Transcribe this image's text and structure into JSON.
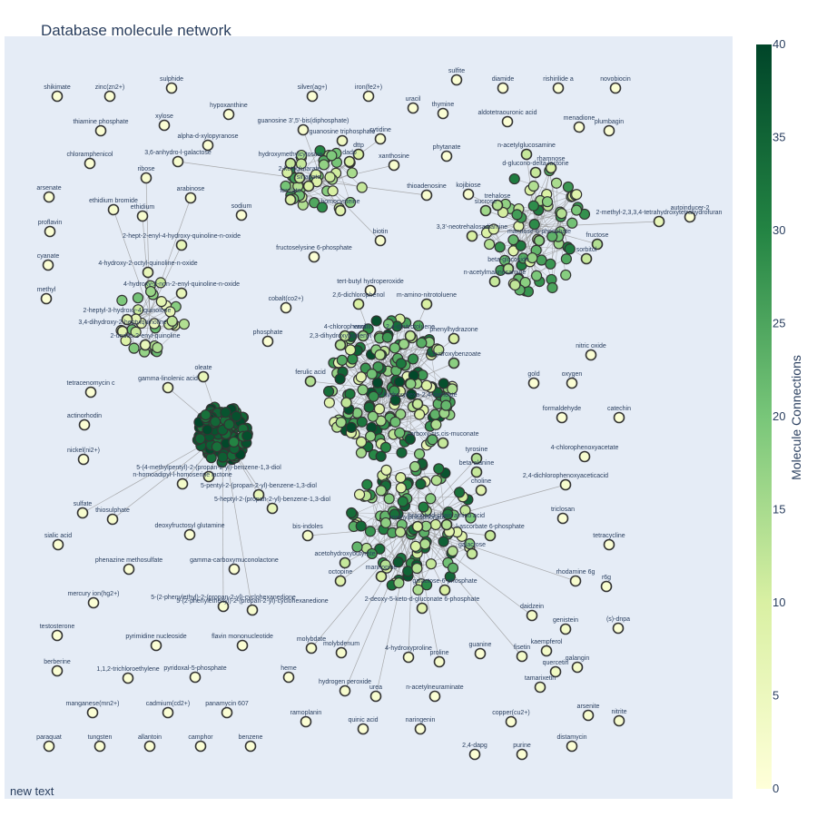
{
  "title": "Database molecule network",
  "footnote": "new text",
  "colorbar": {
    "title": "Molecule Connections",
    "min": 0,
    "max": 40,
    "ticks": [
      0,
      5,
      10,
      15,
      20,
      25,
      30,
      35,
      40
    ],
    "colors": [
      "#ffffd9",
      "#d9f0a3",
      "#78c679",
      "#238443",
      "#004529"
    ]
  },
  "colors": {
    "plot_bg": "#e5ecf6",
    "edge": "#999999",
    "node_stroke": "#333333",
    "text": "#2a3f5f"
  },
  "labeled_nodes": [
    {
      "label": "shikimate",
      "value": 1
    },
    {
      "label": "zinc(zn2+)",
      "value": 1
    },
    {
      "label": "sulphide",
      "value": 1
    },
    {
      "label": "silver(ag+)",
      "value": 1
    },
    {
      "label": "iron(fe2+)",
      "value": 1
    },
    {
      "label": "sulfite",
      "value": 1
    },
    {
      "label": "diamide",
      "value": 1
    },
    {
      "label": "rishirilide a",
      "value": 1
    },
    {
      "label": "novobiocin",
      "value": 1
    },
    {
      "label": "hypoxanthine",
      "value": 1
    },
    {
      "label": "uracil",
      "value": 1
    },
    {
      "label": "thymine",
      "value": 1
    },
    {
      "label": "thiamine phosphate",
      "value": 1
    },
    {
      "label": "xylose",
      "value": 1
    },
    {
      "label": "guanosine 3',5'-bis(diphosphate)",
      "value": 2
    },
    {
      "label": "aldotetraouronic acid",
      "value": 1
    },
    {
      "label": "menadione",
      "value": 1
    },
    {
      "label": "plumbagin",
      "value": 1
    },
    {
      "label": "alpha-d-xylopyranose",
      "value": 1
    },
    {
      "label": "guanosine triphosphate",
      "value": 4
    },
    {
      "label": "cytidine",
      "value": 2
    },
    {
      "label": "chloramphenicol",
      "value": 1
    },
    {
      "label": "3,6-anhydro-l-galactose",
      "value": 2
    },
    {
      "label": "ribose",
      "value": 2
    },
    {
      "label": "xanthosine",
      "value": 2
    },
    {
      "label": "phytanate",
      "value": 1
    },
    {
      "label": "arsenate",
      "value": 1
    },
    {
      "label": "arabinose",
      "value": 2
    },
    {
      "label": "thioadenosine",
      "value": 2
    },
    {
      "label": "kojibiose",
      "value": 2
    },
    {
      "label": "ethidium bromide",
      "value": 2
    },
    {
      "label": "ethidium",
      "value": 2
    },
    {
      "label": "sodium",
      "value": 1
    },
    {
      "label": "autoinducer-2",
      "value": 1
    },
    {
      "label": "proflavin",
      "value": 1
    },
    {
      "label": "biotin",
      "value": 2
    },
    {
      "label": "fructoselysine 6-phosphate",
      "value": 1
    },
    {
      "label": "cyanate",
      "value": 1
    },
    {
      "label": "methyl",
      "value": 1
    },
    {
      "label": "tert-butyl hydroperoxide",
      "value": 1
    },
    {
      "label": "cobalt(co2+)",
      "value": 1
    },
    {
      "label": "phosphate",
      "value": 1
    },
    {
      "label": "nitric oxide",
      "value": 1
    },
    {
      "label": "oleate",
      "value": 6
    },
    {
      "label": "gamma-linolenic acid",
      "value": 4
    },
    {
      "label": "tetracenomycin c",
      "value": 1
    },
    {
      "label": "gold",
      "value": 1
    },
    {
      "label": "oxygen",
      "value": 1
    },
    {
      "label": "actinorhodin",
      "value": 1
    },
    {
      "label": "formaldehyde",
      "value": 1
    },
    {
      "label": "catechin",
      "value": 1
    },
    {
      "label": "nickel(ni2+)",
      "value": 1
    },
    {
      "label": "4-chlorophenoxyacetate",
      "value": 2
    },
    {
      "label": "2,4-dichlorophenoxyaceticacid",
      "value": 2
    },
    {
      "label": "n-homoadipyl-l-homoserine lactone",
      "value": 3
    },
    {
      "label": "triclosan",
      "value": 1
    },
    {
      "label": "sulfate",
      "value": 2
    },
    {
      "label": "thiosulphate",
      "value": 2
    },
    {
      "label": "sialic acid",
      "value": 1
    },
    {
      "label": "deoxyfructosyl glutamine",
      "value": 1
    },
    {
      "label": "bis-indoles",
      "value": 3
    },
    {
      "label": "tetracycline",
      "value": 1
    },
    {
      "label": "phenazine methosulfate",
      "value": 1
    },
    {
      "label": "gamma-carboxymuconolactone",
      "value": 1
    },
    {
      "label": "rhodamine 6g",
      "value": 2
    },
    {
      "label": "r6g",
      "value": 2
    },
    {
      "label": "mercury ion(hg2+)",
      "value": 1
    },
    {
      "label": "5-(2-phenylethyl)-2-(propan-2-yl)-cyclohexanedione",
      "value": 2
    },
    {
      "label": "5-(2-phenylethenyl)-2-(propan-2-yl)-cyclohexanedione",
      "value": 2
    },
    {
      "label": "(s)-dnpa",
      "value": 1
    },
    {
      "label": "daidzein",
      "value": 3
    },
    {
      "label": "genistein",
      "value": 3
    },
    {
      "label": "testosterone",
      "value": 1
    },
    {
      "label": "pyrimidine nucleoside",
      "value": 1
    },
    {
      "label": "flavin mononucleotide",
      "value": 1
    },
    {
      "label": "molybdate",
      "value": 2
    },
    {
      "label": "molybdenum",
      "value": 2
    },
    {
      "label": "4-hydroxyproline",
      "value": 2
    },
    {
      "label": "proline",
      "value": 2
    },
    {
      "label": "guanine",
      "value": 1
    },
    {
      "label": "kaempferol",
      "value": 3
    },
    {
      "label": "fisetin",
      "value": 3
    },
    {
      "label": "galangin",
      "value": 3
    },
    {
      "label": "quercetin",
      "value": 4
    },
    {
      "label": "berberine",
      "value": 1
    },
    {
      "label": "1,1,2-trichloroethylene",
      "value": 1
    },
    {
      "label": "pyridoxal-5-phosphate",
      "value": 1
    },
    {
      "label": "heme",
      "value": 1
    },
    {
      "label": "hydrogen peroxide",
      "value": 2
    },
    {
      "label": "urea",
      "value": 2
    },
    {
      "label": "n-acetylneuraminate",
      "value": 1
    },
    {
      "label": "tamarixetin",
      "value": 3
    },
    {
      "label": "manganese(mn2+)",
      "value": 1
    },
    {
      "label": "cadmium(cd2+)",
      "value": 1
    },
    {
      "label": "panamycin 607",
      "value": 1
    },
    {
      "label": "ramoplanin",
      "value": 1
    },
    {
      "label": "quinic acid",
      "value": 1
    },
    {
      "label": "naringenin",
      "value": 1
    },
    {
      "label": "copper(cu2+)",
      "value": 1
    },
    {
      "label": "arsenite",
      "value": 2
    },
    {
      "label": "nitrite",
      "value": 2
    },
    {
      "label": "paraquat",
      "value": 1
    },
    {
      "label": "tungsten",
      "value": 1
    },
    {
      "label": "allantoin",
      "value": 1
    },
    {
      "label": "camphor",
      "value": 1
    },
    {
      "label": "benzene",
      "value": 1
    },
    {
      "label": "2,4-dapg",
      "value": 1
    },
    {
      "label": "purine",
      "value": 1
    },
    {
      "label": "distamycin",
      "value": 1
    },
    {
      "label": "2-hept-2-enyl-4-hydroxy-quinoline-n-oxide",
      "value": 6
    },
    {
      "label": "4-hydroxy-2-octyl-quinoline-n-oxide",
      "value": 6
    },
    {
      "label": "4-hydroxy-2-non-2-enyl-quinoline-n-oxide",
      "value": 6
    },
    {
      "label": "2-heptyl-3-hydroxy-4-quinolone",
      "value": 8
    },
    {
      "label": "3,4-dihydroxy-2-heptylquinoline",
      "value": 8
    },
    {
      "label": "2-undec-2-enyl-quinoline",
      "value": 6
    },
    {
      "label": "hydroxymethylcytosine",
      "value": 12
    },
    {
      "label": "dadp",
      "value": 10
    },
    {
      "label": "2-ketoglutarate",
      "value": 12
    },
    {
      "label": "sinapate",
      "value": 10
    },
    {
      "label": "ferulate",
      "value": 10
    },
    {
      "label": "homocysteine",
      "value": 8
    },
    {
      "label": "dttp",
      "value": 10
    },
    {
      "label": "n-acetylglucosamine",
      "value": 12
    },
    {
      "label": "d-glucono-delta-lactone",
      "value": 12
    },
    {
      "label": "rhamnose",
      "value": 10
    },
    {
      "label": "trehalose",
      "value": 14
    },
    {
      "label": "sucrose",
      "value": 16
    },
    {
      "label": "3,3'-neotrehalosadiamine",
      "value": 10
    },
    {
      "label": "mannose-6-phosphate",
      "value": 18
    },
    {
      "label": "fructose",
      "value": 14
    },
    {
      "label": "sorbitol",
      "value": 12
    },
    {
      "label": "beta-glucoside",
      "value": 14
    },
    {
      "label": "n-acetylmannosamine",
      "value": 12
    },
    {
      "label": "2-methyl-2,3,3,4-tetrahydroxytetrahydrofuran",
      "value": 6
    },
    {
      "label": "2,6-dichlorophenol",
      "value": 10
    },
    {
      "label": "m-amino-nitrotoluene",
      "value": 10
    },
    {
      "label": "4-chlorophenol",
      "value": 12
    },
    {
      "label": "2,3-dihydroxybiphenyl",
      "value": 14
    },
    {
      "label": "vanillin",
      "value": 16
    },
    {
      "label": "ferulic acid",
      "value": 14
    },
    {
      "label": "4-hydroxybenzoate",
      "value": 18
    },
    {
      "label": "phenylhydrazone",
      "value": 10
    },
    {
      "label": "2,4-dinitrotoluene",
      "value": 12
    },
    {
      "label": "2-hydroxyhexa-2,4-dienoate",
      "value": 12
    },
    {
      "label": "carboxy-cis,cis-muconate",
      "value": 12
    },
    {
      "label": "tyrosine",
      "value": 14
    },
    {
      "label": "beta-alanine",
      "value": 12
    },
    {
      "label": "choline",
      "value": 8
    },
    {
      "label": "branched-chain amino acid",
      "value": 14
    },
    {
      "label": "methylphosphonate",
      "value": 10
    },
    {
      "label": "acetohydroxybutyrate",
      "value": 12
    },
    {
      "label": "octopine",
      "value": 8
    },
    {
      "label": "mannopine",
      "value": 10
    },
    {
      "label": "l-ascorbate 6-phosphate",
      "value": 12
    },
    {
      "label": "galactose",
      "value": 12
    },
    {
      "label": "galactose-6-phosphate",
      "value": 10
    },
    {
      "label": "2-deoxy-5-keto-d-gluconate 6-phosphate",
      "value": 8
    },
    {
      "label": "5-(4-methylpentyl)-2-(propan-2-yl)-benzene-1,3-diol",
      "value": 6
    },
    {
      "label": "5-pentyl-2-(propan-2-yl)-benzene-1,3-diol",
      "value": 6
    },
    {
      "label": "5-heptyl-2-(propan-2-yl)-benzene-1,3-diol",
      "value": 6
    }
  ]
}
